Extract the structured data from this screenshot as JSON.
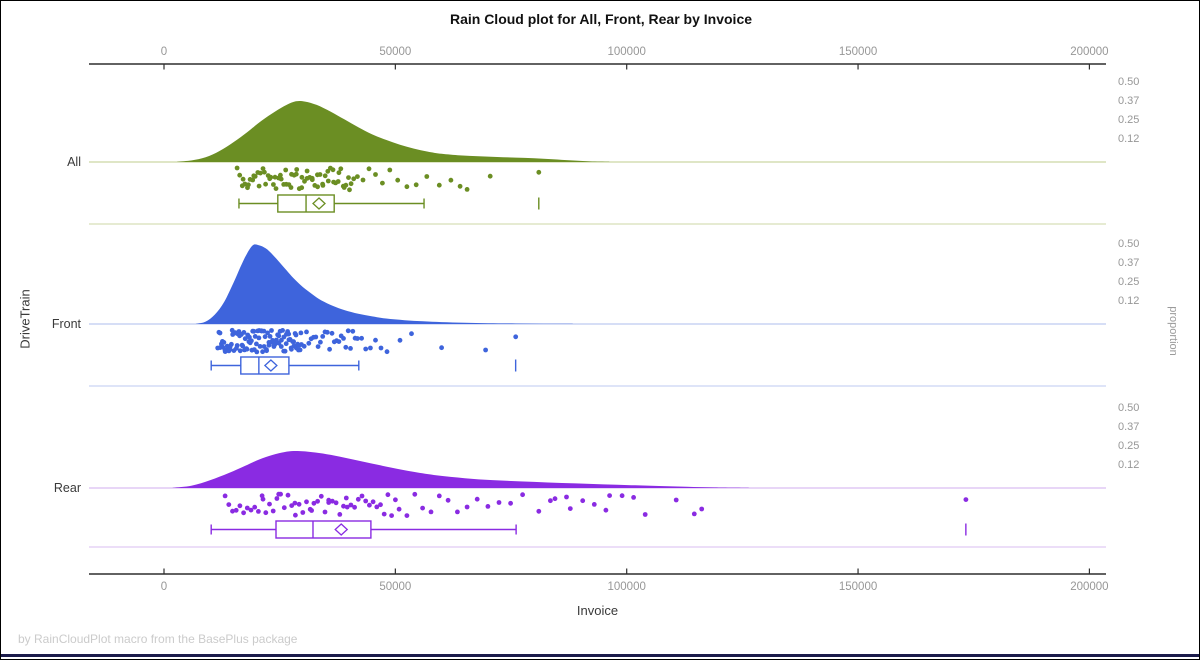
{
  "title": "Rain Cloud plot for All, Front, Rear by Invoice",
  "footer": "by RainCloudPlot macro from the BasePlus package",
  "colors": {
    "axis_line": "#2e2e2e",
    "tick_label": "#979797",
    "axis_label": "#3a3a3a",
    "category_label": "#3a3a3a",
    "title": "#111111",
    "footer": "#cbcbcb",
    "bottom_bar": "#1b1b4b",
    "all": "#6B8E23",
    "front": "#3E64DC",
    "rear": "#8A2BE2"
  },
  "chart_data": {
    "type": "raincloud",
    "title": "Rain Cloud plot for All, Front, Rear by Invoice",
    "x_axis": {
      "label": "Invoice",
      "tick_values": [
        0,
        50000,
        100000,
        150000,
        200000
      ],
      "tick_labels": [
        "0",
        "50000",
        "100000",
        "150000",
        "200000"
      ],
      "range": [
        -16000,
        204000
      ],
      "shown_on": "top and bottom"
    },
    "category_axis": {
      "label": "DriveTrain",
      "categories": [
        "All",
        "Front",
        "Rear"
      ]
    },
    "proportion_axis": {
      "label": "proportion",
      "tick_labels": [
        "0.50",
        "0.37",
        "0.25",
        "0.12"
      ],
      "tick_values": [
        0.5,
        0.37,
        0.25,
        0.12
      ]
    },
    "groups": [
      {
        "label": "All",
        "color": "#6B8E23",
        "light_color": "#ccd7a4",
        "density": [
          [
            3000,
            0.002
          ],
          [
            6000,
            0.01
          ],
          [
            9000,
            0.03
          ],
          [
            12000,
            0.07
          ],
          [
            15000,
            0.125
          ],
          [
            18000,
            0.19
          ],
          [
            21000,
            0.26
          ],
          [
            24000,
            0.32
          ],
          [
            26500,
            0.362
          ],
          [
            28500,
            0.385
          ],
          [
            30500,
            0.383
          ],
          [
            33000,
            0.362
          ],
          [
            36000,
            0.32
          ],
          [
            39000,
            0.27
          ],
          [
            42000,
            0.22
          ],
          [
            45000,
            0.175
          ],
          [
            48000,
            0.14
          ],
          [
            51000,
            0.11
          ],
          [
            54000,
            0.085
          ],
          [
            57000,
            0.066
          ],
          [
            60000,
            0.052
          ],
          [
            64000,
            0.042
          ],
          [
            68000,
            0.036
          ],
          [
            72000,
            0.032
          ],
          [
            76000,
            0.028
          ],
          [
            80000,
            0.024
          ],
          [
            84000,
            0.018
          ],
          [
            88000,
            0.01
          ],
          [
            92000,
            0.004
          ],
          [
            96000,
            0.001
          ]
        ],
        "box": {
          "whisker_low": 16200,
          "q1": 24600,
          "median": 30700,
          "q3": 36800,
          "mean": 33500,
          "whisker_high": 56200,
          "outliers": [
            81000
          ]
        },
        "rain": [
          15800,
          16360,
          16920,
          17480,
          18040,
          18600,
          19160,
          19720,
          20280,
          20840,
          21400,
          21960,
          22520,
          23080,
          23640,
          24200,
          24760,
          25320,
          25880,
          26440,
          27000,
          27560,
          28120,
          28680,
          29240,
          29800,
          30360,
          30920,
          31480,
          32040,
          32600,
          33160,
          33720,
          34280,
          34840,
          35400,
          35960,
          36520,
          37080,
          37640,
          38200,
          38760,
          39320,
          39880,
          40440,
          41000,
          17100,
          18250,
          19400,
          20550,
          21700,
          22850,
          24000,
          25150,
          26300,
          27450,
          28600,
          29750,
          30900,
          32050,
          33200,
          34350,
          35500,
          36650,
          37800,
          38950,
          40100,
          41800,
          43000,
          44300,
          45700,
          47200,
          48800,
          50500,
          52500,
          54500,
          56800,
          59500,
          62000,
          64000,
          65500,
          70500,
          81000
        ]
      },
      {
        "label": "Front",
        "color": "#3E64DC",
        "light_color": "#bdcaf0",
        "density": [
          [
            7000,
            0.002
          ],
          [
            9000,
            0.015
          ],
          [
            11000,
            0.06
          ],
          [
            13000,
            0.14
          ],
          [
            15000,
            0.26
          ],
          [
            16500,
            0.36
          ],
          [
            17800,
            0.44
          ],
          [
            19200,
            0.5
          ],
          [
            20500,
            0.5
          ],
          [
            22000,
            0.48
          ],
          [
            23500,
            0.44
          ],
          [
            25000,
            0.39
          ],
          [
            26500,
            0.34
          ],
          [
            28000,
            0.29
          ],
          [
            30000,
            0.235
          ],
          [
            32000,
            0.19
          ],
          [
            34000,
            0.15
          ],
          [
            36500,
            0.115
          ],
          [
            39000,
            0.088
          ],
          [
            42000,
            0.065
          ],
          [
            45000,
            0.048
          ],
          [
            48000,
            0.035
          ],
          [
            52000,
            0.024
          ],
          [
            56000,
            0.017
          ],
          [
            60000,
            0.012
          ],
          [
            65000,
            0.008
          ],
          [
            70000,
            0.005
          ],
          [
            76000,
            0.003
          ],
          [
            82000,
            0.002
          ],
          [
            88000,
            0.001
          ]
        ],
        "box": {
          "whisker_low": 10200,
          "q1": 16600,
          "median": 20500,
          "q3": 27000,
          "mean": 23100,
          "whisker_high": 42100,
          "outliers": [
            76000
          ]
        },
        "rain": [
          11600,
          11870,
          12140,
          12410,
          12680,
          12950,
          13220,
          13490,
          13760,
          14030,
          14300,
          14570,
          14840,
          15110,
          15380,
          15650,
          15920,
          16190,
          16460,
          16730,
          17000,
          17270,
          17540,
          17810,
          18080,
          18350,
          18620,
          18890,
          19160,
          19430,
          19700,
          19970,
          20240,
          20510,
          20780,
          21050,
          21320,
          21590,
          21860,
          22130,
          22400,
          22670,
          22940,
          23210,
          23480,
          23750,
          24020,
          24290,
          24560,
          24830,
          25100,
          25370,
          25640,
          25910,
          26180,
          26450,
          26720,
          26990,
          27260,
          27530,
          27800,
          28070,
          28340,
          28610,
          28880,
          29150,
          29420,
          29690,
          12100,
          12630,
          13160,
          13690,
          14220,
          14750,
          15280,
          15810,
          16340,
          16870,
          17400,
          17930,
          18460,
          18990,
          19520,
          20050,
          20580,
          21110,
          21640,
          22170,
          22700,
          23230,
          23760,
          24290,
          24820,
          25350,
          25880,
          26410,
          26940,
          27470,
          28000,
          28530,
          29060,
          29590,
          30300,
          30800,
          31300,
          31800,
          32300,
          32800,
          33300,
          33800,
          34300,
          34800,
          35300,
          35800,
          36300,
          36800,
          37300,
          37800,
          38300,
          38800,
          39300,
          39800,
          40300,
          40800,
          41300,
          41800,
          42700,
          43600,
          44600,
          45700,
          46900,
          48200,
          51000,
          53500,
          60000,
          69500,
          76000
        ]
      },
      {
        "label": "Rear",
        "color": "#8A2BE2",
        "light_color": "#dabef2",
        "density": [
          [
            2000,
            0.002
          ],
          [
            6000,
            0.015
          ],
          [
            10000,
            0.05
          ],
          [
            14000,
            0.095
          ],
          [
            17500,
            0.14
          ],
          [
            20500,
            0.18
          ],
          [
            23500,
            0.21
          ],
          [
            26000,
            0.228
          ],
          [
            28000,
            0.235
          ],
          [
            30500,
            0.232
          ],
          [
            33500,
            0.222
          ],
          [
            37000,
            0.205
          ],
          [
            41000,
            0.18
          ],
          [
            45000,
            0.155
          ],
          [
            49000,
            0.13
          ],
          [
            54000,
            0.102
          ],
          [
            59000,
            0.08
          ],
          [
            65000,
            0.062
          ],
          [
            71000,
            0.05
          ],
          [
            77000,
            0.042
          ],
          [
            83000,
            0.035
          ],
          [
            89000,
            0.029
          ],
          [
            95000,
            0.023
          ],
          [
            101000,
            0.018
          ],
          [
            107000,
            0.013
          ],
          [
            113000,
            0.008
          ],
          [
            119000,
            0.004
          ],
          [
            126000,
            0.001
          ]
        ],
        "box": {
          "whisker_low": 10200,
          "q1": 24200,
          "median": 32200,
          "q3": 44700,
          "mean": 38300,
          "whisker_high": 76100,
          "outliers": [
            173300
          ]
        },
        "rain": [
          13200,
          14000,
          14800,
          15600,
          16400,
          17200,
          18000,
          18800,
          19600,
          20400,
          21200,
          22000,
          22800,
          23600,
          24400,
          25200,
          26000,
          26800,
          27600,
          28400,
          29200,
          30000,
          30800,
          31600,
          32400,
          33200,
          34000,
          34800,
          35600,
          36400,
          37200,
          38000,
          38800,
          39600,
          40400,
          41200,
          42000,
          42800,
          43600,
          44400,
          45200,
          46000,
          46800,
          47600,
          48400,
          49200,
          50000,
          21400,
          24800,
          28300,
          31900,
          35600,
          39400,
          50800,
          52500,
          54200,
          55900,
          57700,
          59500,
          61400,
          63400,
          65500,
          67700,
          70000,
          72400,
          74900,
          77500,
          81000,
          83500,
          84500,
          87000,
          87800,
          90500,
          93000,
          95500,
          96300,
          99000,
          101500,
          104000,
          110700,
          114600,
          116200,
          173300
        ]
      }
    ]
  }
}
